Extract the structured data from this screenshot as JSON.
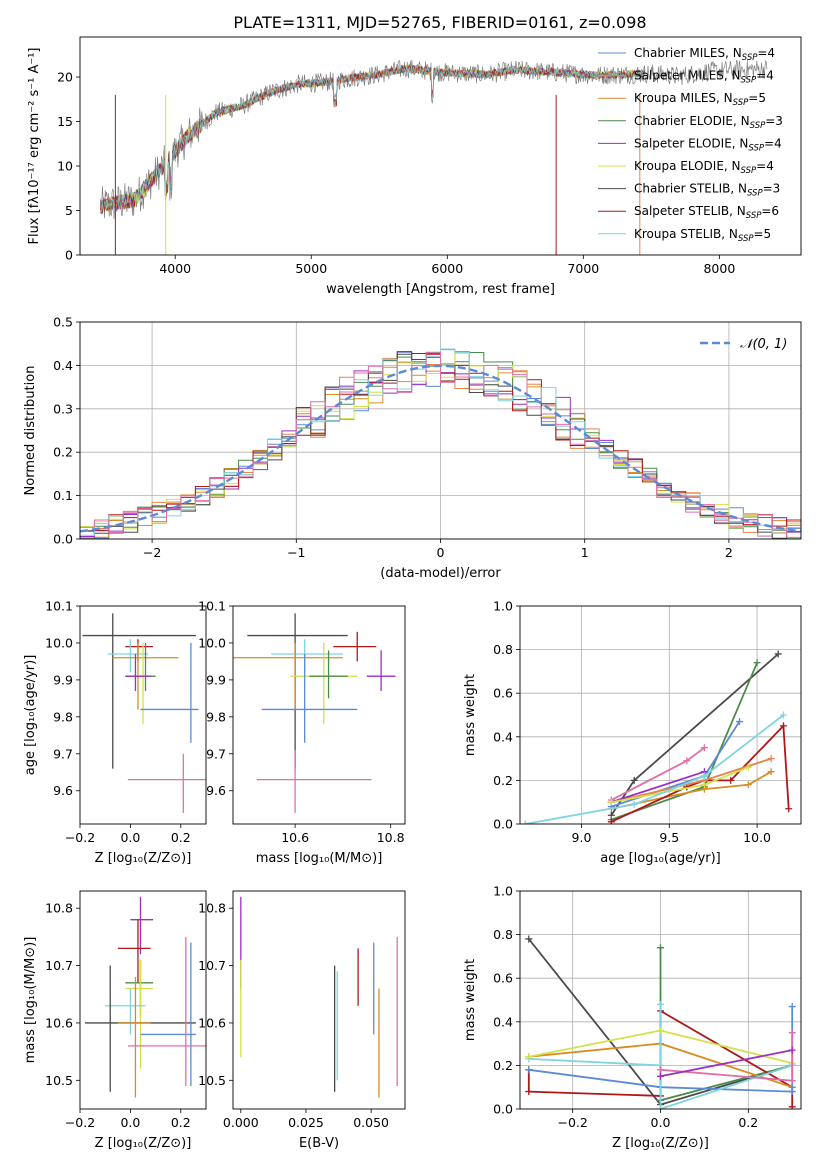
{
  "title": "PLATE=1311, MJD=52765, FIBERID=0161, z=0.098",
  "models": [
    {
      "name": "Chabrier MILES",
      "n_label": "N",
      "n_sub": "SSP",
      "n_value": "=4",
      "color": "#5b8bd6"
    },
    {
      "name": "Salpeter MILES",
      "n_label": "N",
      "n_sub": "SSP",
      "n_value": "=4",
      "color": "#e8834a"
    },
    {
      "name": "Kroupa MILES",
      "n_label": "N",
      "n_sub": "SSP",
      "n_value": "=5",
      "color": "#d98c24"
    },
    {
      "name": "Chabrier ELODIE",
      "n_label": "N",
      "n_sub": "SSP",
      "n_value": "=3",
      "color": "#4e8a4e"
    },
    {
      "name": "Salpeter ELODIE",
      "n_label": "N",
      "n_sub": "SSP",
      "n_value": "=4",
      "color": "#9b2fc4"
    },
    {
      "name": "Kroupa ELODIE",
      "n_label": "N",
      "n_sub": "SSP",
      "n_value": "=4",
      "color": "#d4e04a"
    },
    {
      "name": "Chabrier STELIB",
      "n_label": "N",
      "n_sub": "SSP",
      "n_value": "=3",
      "color": "#4a4a4a"
    },
    {
      "name": "Salpeter STELIB",
      "n_label": "N",
      "n_sub": "SSP",
      "n_value": "=6",
      "color": "#b01818"
    },
    {
      "name": "Kroupa STELIB",
      "n_label": "N",
      "n_sub": "SSP",
      "n_value": "=5",
      "color": "#7ed4e0"
    }
  ],
  "pink_color": "#e06fa8",
  "chart_data": [
    {
      "id": "spectrum",
      "type": "line",
      "xlabel": "wavelength [Angstrom, rest frame]",
      "ylabel": "Flux [fλ10⁻¹⁷ erg cm⁻² s⁻¹ A⁻¹]",
      "xlim": [
        3300,
        8600
      ],
      "ylim": [
        0,
        24.5
      ],
      "xticks": [
        4000,
        5000,
        6000,
        7000,
        8000
      ],
      "yticks": [
        0,
        5,
        10,
        15,
        20
      ],
      "data_color": "#808080",
      "continuum": [
        [
          3450,
          5.5
        ],
        [
          3700,
          6.2
        ],
        [
          3900,
          9.8
        ],
        [
          4100,
          13.5
        ],
        [
          4300,
          16.0
        ],
        [
          4500,
          16.8
        ],
        [
          4700,
          18.3
        ],
        [
          4900,
          19.2
        ],
        [
          5100,
          19.4
        ],
        [
          5300,
          19.9
        ],
        [
          5500,
          20.3
        ],
        [
          5700,
          21.0
        ],
        [
          5900,
          20.6
        ],
        [
          6100,
          20.4
        ],
        [
          6300,
          20.3
        ],
        [
          6500,
          20.8
        ],
        [
          6700,
          20.6
        ],
        [
          6900,
          20.4
        ],
        [
          7100,
          20.2
        ],
        [
          7300,
          20.3
        ],
        [
          7500,
          20.4
        ],
        [
          7700,
          20.1
        ],
        [
          7900,
          20.6
        ],
        [
          8100,
          20.8
        ],
        [
          8300,
          20.9
        ]
      ]
    },
    {
      "id": "residuals",
      "type": "area",
      "xlabel": "(data-model)/error",
      "ylabel": "Normed distribution",
      "xlim": [
        -2.5,
        2.5
      ],
      "ylim": [
        0,
        0.5
      ],
      "xticks": [
        -2,
        -1,
        0,
        1,
        2
      ],
      "yticks": [
        0.0,
        0.1,
        0.2,
        0.3,
        0.4,
        0.5
      ],
      "bin_width": 0.1,
      "legend": "𝒩(0, 1)",
      "gauss_color": "#5b8bd6"
    },
    {
      "id": "age_vs_Z",
      "type": "scatter",
      "xlabel": "Z [log₁₀(Z/Z⊙)]",
      "ylabel": "age  [log₁₀(age/yr)]",
      "xlim": [
        -0.2,
        0.3
      ],
      "ylim": [
        9.51,
        10.1
      ],
      "xticks": [
        -0.2,
        0.0,
        0.2
      ],
      "yticks": [
        9.6,
        9.7,
        9.8,
        9.9,
        10.0,
        10.1
      ],
      "points": [
        {
          "model": 6,
          "x": -0.07,
          "y": 10.02,
          "xerr": 0.26,
          "yerr": 0.18,
          "xmin": -0.19,
          "xmax": 0.26,
          "ymin": 9.66,
          "ymax": 10.08
        },
        {
          "model": 7,
          "x": 0.03,
          "y": 9.99,
          "xerr": 0.06,
          "yerr": 0.03,
          "xmin": -0.02,
          "xmax": 0.09,
          "ymin": 9.95,
          "ymax": 10.01
        },
        {
          "model": 8,
          "x": 0.0,
          "y": 9.97,
          "xerr": 0.07,
          "yerr": 0.04,
          "xmin": -0.09,
          "xmax": 0.07,
          "ymin": 9.92,
          "ymax": 10.01
        },
        {
          "model": 2,
          "x": 0.03,
          "y": 9.96,
          "xerr": 0.08,
          "yerr": 0.14,
          "xmin": -0.07,
          "xmax": 0.19,
          "ymin": 9.82,
          "ymax": 10.0
        },
        {
          "model": 5,
          "x": 0.05,
          "y": 9.91,
          "xerr": 0.05,
          "yerr": 0.14,
          "xmin": -0.02,
          "xmax": 0.1,
          "ymin": 9.78,
          "ymax": 10.0
        },
        {
          "model": 3,
          "x": 0.06,
          "y": 9.91,
          "xerr": 0.05,
          "yerr": 0.08,
          "xmin": -0.02,
          "xmax": 0.1,
          "ymin": 9.87,
          "ymax": 10.0
        },
        {
          "model": 4,
          "x": 0.02,
          "y": 9.91,
          "xerr": 0.04,
          "yerr": 0.05,
          "xmin": -0.02,
          "xmax": 0.08,
          "ymin": 9.87,
          "ymax": 9.97
        },
        {
          "model": 0,
          "x": 0.24,
          "y": 9.82,
          "xerr": 0.1,
          "yerr": 0.1,
          "xmin": 0.04,
          "xmax": 0.27,
          "ymin": 9.73,
          "ymax": 10.0
        },
        {
          "model": "pink",
          "x": 0.21,
          "y": 9.63,
          "xerr": 0.12,
          "yerr": 0.1,
          "xmin": -0.01,
          "xmax": 0.3,
          "ymin": 9.54,
          "ymax": 9.7
        }
      ]
    },
    {
      "id": "age_vs_mass",
      "type": "scatter",
      "xlabel": "mass [log₁₀(M/M⊙)]",
      "ylabel": "",
      "xlim": [
        10.47,
        10.83
      ],
      "ylim": [
        9.51,
        10.1
      ],
      "xticks": [
        10.6,
        10.8
      ],
      "yticks": [
        9.6,
        9.7,
        9.8,
        9.9,
        10.0,
        10.1
      ],
      "points": [
        {
          "model": 6,
          "x": 10.6,
          "y": 10.02,
          "xerr": 0.1,
          "yerr": 0.18,
          "xmin": 10.5,
          "xmax": 10.71,
          "ymin": 9.66,
          "ymax": 10.08
        },
        {
          "model": 7,
          "x": 10.73,
          "y": 9.99,
          "xerr": 0.05,
          "yerr": 0.03,
          "xmin": 10.68,
          "xmax": 10.77,
          "ymin": 9.95,
          "ymax": 10.03
        },
        {
          "model": 8,
          "x": 10.62,
          "y": 9.97,
          "xerr": 0.06,
          "yerr": 0.04,
          "xmin": 10.55,
          "xmax": 10.7,
          "ymin": 9.92,
          "ymax": 10.01
        },
        {
          "model": 2,
          "x": 10.6,
          "y": 9.96,
          "xerr": 0.1,
          "yerr": 0.14,
          "xmin": 10.47,
          "xmax": 10.7,
          "ymin": 9.82,
          "ymax": 10.0
        },
        {
          "model": 5,
          "x": 10.66,
          "y": 9.91,
          "xerr": 0.06,
          "yerr": 0.14,
          "xmin": 10.59,
          "xmax": 10.73,
          "ymin": 9.78,
          "ymax": 10.0
        },
        {
          "model": 4,
          "x": 10.78,
          "y": 9.91,
          "xerr": 0.03,
          "yerr": 0.08,
          "xmin": 10.75,
          "xmax": 10.81,
          "ymin": 9.87,
          "ymax": 9.98
        },
        {
          "model": 3,
          "x": 10.67,
          "y": 9.91,
          "xerr": 0.05,
          "yerr": 0.05,
          "xmin": 10.63,
          "xmax": 10.71,
          "ymin": 9.85,
          "ymax": 9.98
        },
        {
          "model": 0,
          "x": 10.62,
          "y": 9.82,
          "xerr": 0.1,
          "yerr": 0.1,
          "xmin": 10.53,
          "xmax": 10.73,
          "ymin": 9.73,
          "ymax": 9.97
        },
        {
          "model": "pink",
          "x": 10.6,
          "y": 9.63,
          "xerr": 0.12,
          "yerr": 0.1,
          "xmin": 10.52,
          "xmax": 10.76,
          "ymin": 9.54,
          "ymax": 9.71
        }
      ]
    },
    {
      "id": "weight_vs_age",
      "type": "line",
      "xlabel": "age  [log₁₀(age/yr)]",
      "ylabel": "mass weight",
      "xlim": [
        8.65,
        10.25
      ],
      "ylim": [
        0,
        1.0
      ],
      "xticks": [
        9.0,
        9.5,
        10.0
      ],
      "yticks": [
        0.0,
        0.2,
        0.4,
        0.6,
        0.8,
        1.0
      ],
      "lines": [
        {
          "model": 6,
          "points": [
            [
              9.17,
              0.04
            ],
            [
              9.3,
              0.2
            ],
            [
              10.12,
              0.78
            ]
          ]
        },
        {
          "model": 3,
          "points": [
            [
              9.17,
              0.02
            ],
            [
              9.7,
              0.17
            ],
            [
              10.0,
              0.74
            ]
          ]
        },
        {
          "model": 2,
          "points": [
            [
              9.17,
              0.07
            ],
            [
              9.7,
              0.16
            ],
            [
              9.95,
              0.18
            ],
            [
              10.08,
              0.24
            ]
          ]
        },
        {
          "model": 7,
          "points": [
            [
              9.17,
              0.01
            ],
            [
              9.6,
              0.17
            ],
            [
              9.7,
              0.2
            ],
            [
              9.85,
              0.2
            ],
            [
              10.15,
              0.45
            ],
            [
              10.18,
              0.07
            ]
          ]
        },
        {
          "model": 0,
          "points": [
            [
              9.17,
              0.08
            ],
            [
              9.7,
              0.22
            ],
            [
              9.9,
              0.47
            ]
          ]
        },
        {
          "model": 1,
          "points": [
            [
              9.17,
              0.1
            ],
            [
              9.7,
              0.2
            ],
            [
              10.08,
              0.3
            ]
          ]
        },
        {
          "model": "pink",
          "points": [
            [
              9.17,
              0.11
            ],
            [
              9.6,
              0.29
            ],
            [
              9.7,
              0.35
            ]
          ]
        },
        {
          "model": 4,
          "points": [
            [
              9.17,
              0.1
            ],
            [
              9.7,
              0.24
            ]
          ]
        },
        {
          "model": 5,
          "points": [
            [
              9.17,
              0.1
            ],
            [
              9.7,
              0.18
            ],
            [
              9.95,
              0.26
            ]
          ]
        },
        {
          "model": 8,
          "points": [
            [
              8.68,
              0.0
            ],
            [
              9.3,
              0.09
            ],
            [
              9.7,
              0.22
            ],
            [
              10.15,
              0.5
            ]
          ]
        }
      ]
    },
    {
      "id": "mass_vs_Z",
      "type": "scatter",
      "xlabel": "Z [log₁₀(Z/Z⊙)]",
      "ylabel": "mass [log₁₀(M/M⊙)]",
      "xlim": [
        -0.2,
        0.3
      ],
      "ylim": [
        10.45,
        10.83
      ],
      "xticks": [
        -0.2,
        0.0,
        0.2
      ],
      "yticks": [
        10.5,
        10.6,
        10.7,
        10.8
      ],
      "points": [
        {
          "model": 4,
          "x": 0.04,
          "y": 10.78,
          "xmin": 0.0,
          "xmax": 0.09,
          "ymin": 10.72,
          "ymax": 10.82
        },
        {
          "model": 7,
          "x": 0.03,
          "y": 10.73,
          "xmin": -0.05,
          "xmax": 0.08,
          "ymin": 10.67,
          "ymax": 10.78
        },
        {
          "model": 3,
          "x": 0.04,
          "y": 10.67,
          "xmin": -0.02,
          "xmax": 0.09,
          "ymin": 10.61,
          "ymax": 10.71
        },
        {
          "model": 5,
          "x": 0.04,
          "y": 10.66,
          "xmin": -0.02,
          "xmax": 0.09,
          "ymin": 10.52,
          "ymax": 10.71
        },
        {
          "model": 8,
          "x": 0.0,
          "y": 10.63,
          "xmin": -0.1,
          "xmax": 0.06,
          "ymin": 10.58,
          "ymax": 10.66
        },
        {
          "model": 6,
          "x": -0.08,
          "y": 10.6,
          "xmin": -0.18,
          "xmax": 0.26,
          "ymin": 10.48,
          "ymax": 10.7
        },
        {
          "model": 2,
          "x": 0.02,
          "y": 10.6,
          "xmin": -0.05,
          "xmax": 0.08,
          "ymin": 10.47,
          "ymax": 10.68
        },
        {
          "model": 0,
          "x": 0.24,
          "y": 10.58,
          "xmin": 0.04,
          "xmax": 0.26,
          "ymin": 10.49,
          "ymax": 10.74
        },
        {
          "model": "pink",
          "x": 0.22,
          "y": 10.56,
          "xmin": -0.01,
          "xmax": 0.3,
          "ymin": 10.49,
          "ymax": 10.75
        }
      ]
    },
    {
      "id": "mass_vs_ebv",
      "type": "scatter",
      "xlabel": "E(B-V)",
      "ylabel": "",
      "xlim": [
        -0.003,
        0.063
      ],
      "ylim": [
        10.45,
        10.83
      ],
      "xticks": [
        0.0,
        0.025,
        0.05
      ],
      "xticklabels": [
        "0.000",
        "0.025",
        "0.050"
      ],
      "yticks": [
        10.5,
        10.6,
        10.7,
        10.8
      ],
      "points": [
        {
          "model": 4,
          "x": 0.0,
          "ymin": 10.66,
          "ymax": 10.82
        },
        {
          "model": 5,
          "x": 0.0,
          "ymin": 10.54,
          "ymax": 10.71
        },
        {
          "model": 6,
          "x": 0.036,
          "ymin": 10.48,
          "ymax": 10.7
        },
        {
          "model": 8,
          "x": 0.037,
          "ymin": 10.5,
          "ymax": 10.69
        },
        {
          "model": 7,
          "x": 0.045,
          "ymin": 10.63,
          "ymax": 10.73
        },
        {
          "model": 0,
          "x": 0.051,
          "ymin": 10.58,
          "ymax": 10.74
        },
        {
          "model": 2,
          "x": 0.053,
          "ymin": 10.47,
          "ymax": 10.66
        },
        {
          "model": "pink",
          "x": 0.06,
          "ymin": 10.49,
          "ymax": 10.75
        }
      ]
    },
    {
      "id": "weight_vs_Z",
      "type": "line",
      "xlabel": "Z [log₁₀(Z/Z⊙)]",
      "ylabel": "mass weight",
      "xlim": [
        -0.32,
        0.32
      ],
      "ylim": [
        0,
        1.0
      ],
      "xticks": [
        -0.2,
        0.0,
        0.2
      ],
      "yticks": [
        0.0,
        0.2,
        0.4,
        0.6,
        0.8,
        1.0
      ],
      "lines": [
        {
          "model": 6,
          "points": [
            [
              -0.3,
              0.78
            ],
            [
              0.0,
              0.02
            ],
            [
              0.3,
              0.2
            ]
          ]
        },
        {
          "model": 3,
          "points": [
            [
              0.0,
              0.74
            ],
            [
              0.0,
              0.04
            ],
            [
              0.3,
              0.2
            ]
          ]
        },
        {
          "model": 7,
          "points": [
            [
              -0.3,
              0.18
            ],
            [
              -0.3,
              0.08
            ],
            [
              0.0,
              0.06
            ],
            [
              0.0,
              0.45
            ],
            [
              0.3,
              0.1
            ],
            [
              0.3,
              0.01
            ]
          ]
        },
        {
          "model": 2,
          "points": [
            [
              -0.3,
              0.24
            ],
            [
              0.0,
              0.3
            ],
            [
              0.3,
              0.1
            ]
          ]
        },
        {
          "model": 0,
          "points": [
            [
              -0.3,
              0.18
            ],
            [
              0.0,
              0.1
            ],
            [
              0.3,
              0.08
            ],
            [
              0.3,
              0.47
            ]
          ]
        },
        {
          "model": 8,
          "points": [
            [
              -0.3,
              0.23
            ],
            [
              0.0,
              0.2
            ],
            [
              0.0,
              0.48
            ],
            [
              0.0,
              0.0
            ],
            [
              0.3,
              0.2
            ]
          ]
        },
        {
          "model": 5,
          "points": [
            [
              -0.3,
              0.24
            ],
            [
              0.0,
              0.36
            ],
            [
              0.3,
              0.21
            ]
          ]
        },
        {
          "model": "pink",
          "points": [
            [
              0.0,
              0.18
            ],
            [
              0.3,
              0.13
            ],
            [
              0.3,
              0.35
            ]
          ]
        },
        {
          "model": 4,
          "points": [
            [
              0.0,
              0.15
            ],
            [
              0.3,
              0.27
            ]
          ]
        }
      ]
    }
  ]
}
